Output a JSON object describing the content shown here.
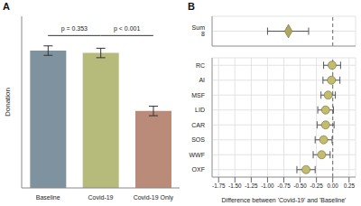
{
  "chart_data": [
    {
      "type": "bar",
      "title": "A",
      "y_label": "Donation",
      "categories": [
        "Baseline",
        "Covid-19",
        "Covid-19 Only"
      ],
      "values": [
        2.32,
        2.28,
        1.3
      ],
      "errors": [
        0.08,
        0.08,
        0.08
      ],
      "colors": [
        "#7f929f",
        "#b6ba7b",
        "#b98b78"
      ],
      "ylim": [
        0,
        2.9
      ],
      "tick_labels": "x",
      "annotations": [
        {
          "text": "p = 0.353",
          "between": [
            "Baseline",
            "Covid-19"
          ]
        },
        {
          "text": "p < 0.001",
          "between": [
            "Covid-19",
            "Covid-19 Only"
          ]
        }
      ]
    },
    {
      "type": "scatter",
      "title": "B",
      "categories": [
        "Sum 8"
      ],
      "values": [
        -0.68
      ],
      "ci_low": [
        -1.0
      ],
      "ci_high": [
        -0.37
      ],
      "color": "#b0a85c",
      "marker": "diamond",
      "xlim": [
        -1.85,
        0.35
      ],
      "xticks": [
        -1.75,
        {
          "value": -1.5,
          "label": "-1.50"
        },
        -1.25,
        {
          "value": -1,
          "label": "-1.00"
        },
        -0.75,
        {
          "value": -0.5,
          "label": "-0.50"
        },
        -0.25,
        {
          "value": 0,
          "label": "0.00"
        },
        0.25
      ],
      "reference_x": 0,
      "grid": true,
      "tick_labels": "y"
    },
    {
      "type": "scatter",
      "x_label": "Difference between 'Covid-19' and 'Baseline'",
      "categories": [
        "OXF",
        "WWF",
        "SOS",
        "CAR",
        "LID",
        "MSF",
        "AI",
        "RC"
      ],
      "values": [
        -0.41,
        -0.17,
        -0.14,
        -0.11,
        -0.11,
        -0.07,
        -0.02,
        -0.01
      ],
      "ci_low": [
        -0.55,
        -0.3,
        -0.27,
        -0.24,
        -0.23,
        -0.18,
        -0.15,
        -0.14
      ],
      "ci_high": [
        -0.27,
        -0.04,
        -0.01,
        0.02,
        0.01,
        0.04,
        0.11,
        0.12
      ],
      "color": "#c2bc6c",
      "marker": "circle",
      "xlim": [
        -1.85,
        0.35
      ],
      "xticks": [
        -1.75,
        {
          "value": -1.5,
          "label": "-1.50"
        },
        -1.25,
        {
          "value": -1,
          "label": "-1.00"
        },
        -0.75,
        {
          "value": -0.5,
          "label": "-0.50"
        },
        -0.25,
        {
          "value": 0,
          "label": "0.00"
        },
        0.25
      ],
      "reference_x": 0,
      "grid": true
    }
  ]
}
